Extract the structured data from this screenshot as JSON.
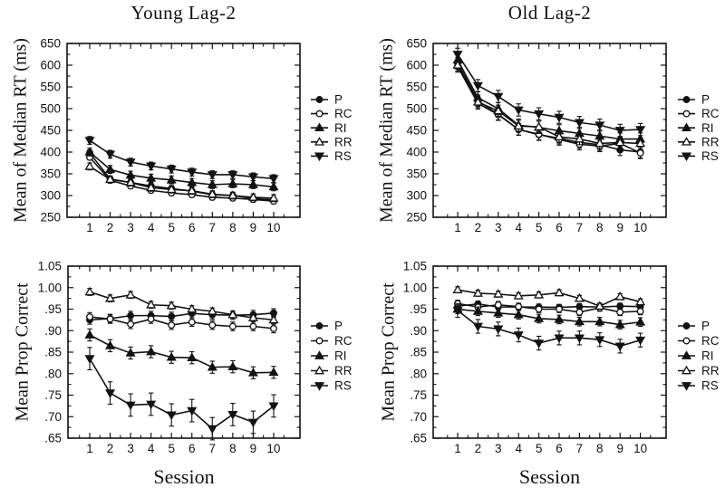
{
  "figure": {
    "background": "#ffffff",
    "ink": "#121212",
    "marker_open_fill": "#ffffff"
  },
  "chart_data": [
    {
      "id": "young-rt",
      "type": "line",
      "title": "Young Lag-2",
      "ylabel": "Mean of Median RT (ms)",
      "xlabel": "",
      "legend_position": "right",
      "x": [
        1,
        2,
        3,
        4,
        5,
        6,
        7,
        8,
        9,
        10
      ],
      "xtick_labels": [
        "1",
        "2",
        "3",
        "4",
        "5",
        "6",
        "7",
        "8",
        "9",
        "10"
      ],
      "ylim": [
        250,
        650
      ],
      "yticks": [
        250,
        300,
        350,
        400,
        450,
        500,
        550,
        600,
        650
      ],
      "ytick_labels": [
        "250",
        "300",
        "350",
        "400",
        "450",
        "500",
        "550",
        "600",
        "650"
      ],
      "series": [
        {
          "name": "P",
          "marker": "filled-circle",
          "err": 7,
          "values": [
            398,
            338,
            330,
            322,
            316,
            310,
            302,
            300,
            293,
            290
          ]
        },
        {
          "name": "RC",
          "marker": "open-circle",
          "err": 6,
          "values": [
            388,
            335,
            322,
            312,
            306,
            302,
            296,
            294,
            291,
            287
          ]
        },
        {
          "name": "RI",
          "marker": "filled-triangle-up",
          "err": 9,
          "values": [
            400,
            360,
            347,
            340,
            336,
            330,
            325,
            327,
            325,
            320
          ]
        },
        {
          "name": "RR",
          "marker": "open-triangle-up",
          "err": 8,
          "values": [
            367,
            337,
            330,
            318,
            314,
            311,
            303,
            300,
            296,
            294
          ]
        },
        {
          "name": "RS",
          "marker": "filled-triangle-down",
          "err": 9,
          "values": [
            427,
            395,
            377,
            368,
            361,
            354,
            348,
            348,
            343,
            339
          ]
        }
      ]
    },
    {
      "id": "old-rt",
      "type": "line",
      "title": "Old Lag-2",
      "ylabel": "Mean of Median RT (ms)",
      "xlabel": "",
      "legend_position": "right",
      "x": [
        1,
        2,
        3,
        4,
        5,
        6,
        7,
        8,
        9,
        10
      ],
      "xtick_labels": [
        "1",
        "2",
        "3",
        "4",
        "5",
        "6",
        "7",
        "8",
        "9",
        "10"
      ],
      "ylim": [
        250,
        650
      ],
      "yticks": [
        250,
        300,
        350,
        400,
        450,
        500,
        550,
        600,
        650
      ],
      "ytick_labels": [
        "250",
        "300",
        "350",
        "400",
        "450",
        "500",
        "550",
        "600",
        "650"
      ],
      "series": [
        {
          "name": "P",
          "marker": "filled-circle",
          "err": 13,
          "values": [
            605,
            518,
            487,
            452,
            440,
            432,
            422,
            417,
            405,
            400
          ]
        },
        {
          "name": "RC",
          "marker": "open-circle",
          "err": 13,
          "values": [
            597,
            512,
            486,
            452,
            441,
            429,
            418,
            414,
            420,
            398
          ]
        },
        {
          "name": "RI",
          "marker": "filled-triangle-up",
          "err": 14,
          "values": [
            612,
            525,
            500,
            462,
            457,
            449,
            443,
            437,
            430,
            430
          ]
        },
        {
          "name": "RR",
          "marker": "open-triangle-up",
          "err": 13,
          "values": [
            600,
            515,
            495,
            460,
            458,
            435,
            430,
            420,
            422,
            420
          ]
        },
        {
          "name": "RS",
          "marker": "filled-triangle-down",
          "err": 14,
          "values": [
            625,
            553,
            528,
            497,
            488,
            480,
            468,
            462,
            450,
            452
          ]
        }
      ]
    },
    {
      "id": "young-acc",
      "type": "line",
      "title": "",
      "ylabel": "Mean Prop Correct",
      "xlabel": "Session",
      "legend_position": "right",
      "x": [
        1,
        2,
        3,
        4,
        5,
        6,
        7,
        8,
        9,
        10
      ],
      "xtick_labels": [
        "1",
        "2",
        "3",
        "4",
        "5",
        "6",
        "7",
        "8",
        "9",
        "10"
      ],
      "ylim": [
        0.65,
        1.05
      ],
      "yticks": [
        0.65,
        0.7,
        0.75,
        0.8,
        0.85,
        0.9,
        0.95,
        1.0,
        1.05
      ],
      "ytick_labels": [
        ".65",
        ".70",
        ".75",
        ".80",
        ".85",
        ".90",
        ".95",
        "1.00",
        "1.05"
      ],
      "series": [
        {
          "name": "P",
          "marker": "filled-circle",
          "err": 0.01,
          "values": [
            0.925,
            0.928,
            0.935,
            0.935,
            0.933,
            0.94,
            0.937,
            0.936,
            0.937,
            0.941
          ]
        },
        {
          "name": "RC",
          "marker": "open-circle",
          "err": 0.01,
          "values": [
            0.932,
            0.927,
            0.915,
            0.927,
            0.913,
            0.92,
            0.913,
            0.91,
            0.91,
            0.905
          ]
        },
        {
          "name": "RI",
          "marker": "filled-triangle-up",
          "err": 0.014,
          "values": [
            0.89,
            0.865,
            0.848,
            0.851,
            0.838,
            0.837,
            0.815,
            0.816,
            0.802,
            0.803
          ]
        },
        {
          "name": "RR",
          "marker": "open-triangle-up",
          "err": 0.008,
          "values": [
            0.99,
            0.975,
            0.983,
            0.96,
            0.958,
            0.95,
            0.945,
            0.937,
            0.93,
            0.925
          ]
        },
        {
          "name": "RS",
          "marker": "filled-triangle-down",
          "err": 0.026,
          "values": [
            0.835,
            0.755,
            0.727,
            0.729,
            0.704,
            0.714,
            0.672,
            0.705,
            0.687,
            0.725
          ]
        }
      ]
    },
    {
      "id": "old-acc",
      "type": "line",
      "title": "",
      "ylabel": "Mean Prop Correct",
      "xlabel": "Session",
      "legend_position": "right",
      "x": [
        1,
        2,
        3,
        4,
        5,
        6,
        7,
        8,
        9,
        10
      ],
      "xtick_labels": [
        "1",
        "2",
        "3",
        "4",
        "5",
        "6",
        "7",
        "8",
        "9",
        "10"
      ],
      "ylim": [
        0.65,
        1.05
      ],
      "yticks": [
        0.65,
        0.7,
        0.75,
        0.8,
        0.85,
        0.9,
        0.95,
        1.0,
        1.05
      ],
      "ytick_labels": [
        ".65",
        ".70",
        ".75",
        ".80",
        ".85",
        ".90",
        ".95",
        "1.00",
        "1.05"
      ],
      "series": [
        {
          "name": "P",
          "marker": "filled-circle",
          "err": 0.007,
          "values": [
            0.957,
            0.962,
            0.955,
            0.955,
            0.955,
            0.954,
            0.956,
            0.955,
            0.957,
            0.956
          ]
        },
        {
          "name": "RC",
          "marker": "open-circle",
          "err": 0.008,
          "values": [
            0.963,
            0.955,
            0.96,
            0.956,
            0.95,
            0.95,
            0.943,
            0.953,
            0.943,
            0.945
          ]
        },
        {
          "name": "RI",
          "marker": "filled-triangle-up",
          "err": 0.01,
          "values": [
            0.95,
            0.945,
            0.941,
            0.937,
            0.928,
            0.926,
            0.921,
            0.921,
            0.914,
            0.92
          ]
        },
        {
          "name": "RR",
          "marker": "open-triangle-up",
          "err": 0.007,
          "values": [
            0.995,
            0.987,
            0.985,
            0.981,
            0.983,
            0.988,
            0.975,
            0.957,
            0.979,
            0.967
          ]
        },
        {
          "name": "RS",
          "marker": "filled-triangle-down",
          "err": 0.016,
          "values": [
            0.947,
            0.91,
            0.904,
            0.89,
            0.871,
            0.883,
            0.883,
            0.879,
            0.864,
            0.878
          ]
        }
      ]
    }
  ]
}
